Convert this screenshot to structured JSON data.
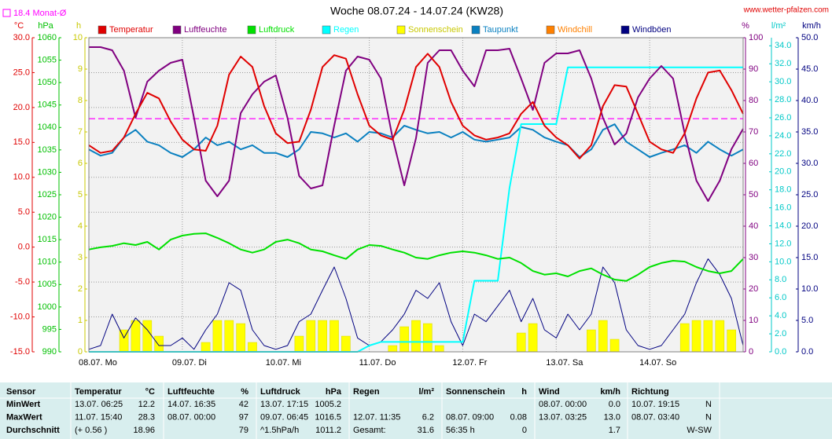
{
  "chart_data": {
    "type": "line",
    "title": "Woche 08.07.24 - 14.07.24 (KW28)",
    "source": "www.wetter-pfalzen.com",
    "monthly_mean": 18.4,
    "monthly_mean_label": "Monat-Ø",
    "monthly_mean_color": "#ff00ff",
    "grid": true,
    "categories": [
      "08.07. Mo",
      null,
      null,
      null,
      null,
      null,
      null,
      null,
      "09.07. Di",
      null,
      null,
      null,
      null,
      null,
      null,
      null,
      "10.07. Mi",
      null,
      null,
      null,
      null,
      null,
      null,
      null,
      "11.07. Do",
      null,
      null,
      null,
      null,
      null,
      null,
      null,
      "12.07. Fr",
      null,
      null,
      null,
      null,
      null,
      null,
      null,
      "13.07. Sa",
      null,
      null,
      null,
      null,
      null,
      null,
      null,
      "14.07. So",
      null,
      null,
      null,
      null,
      null,
      null,
      null,
      null
    ],
    "axes": {
      "temp": {
        "label": "°C",
        "color": "#e00000",
        "lim": [
          -15,
          30
        ],
        "ticks": [
          {
            "value": 30,
            "label": "30.0"
          },
          {
            "value": 25,
            "label": "25.0"
          },
          {
            "value": 20,
            "label": "20.0"
          },
          {
            "value": 15,
            "label": "15.0"
          },
          {
            "value": 10,
            "label": "10.0"
          },
          {
            "value": 5,
            "label": "5.0"
          },
          {
            "value": 0,
            "label": "0.0"
          },
          {
            "value": -5,
            "label": "-5.0"
          },
          {
            "value": -10,
            "label": "-10.0"
          },
          {
            "value": -15,
            "label": "-15.0"
          }
        ]
      },
      "pressure": {
        "label": "hPa",
        "color": "#00c000",
        "lim": [
          990,
          1060
        ],
        "ticks": [
          1060,
          1055,
          1050,
          1045,
          1040,
          1035,
          1030,
          1025,
          1020,
          1015,
          1010,
          1005,
          1000,
          995,
          990
        ]
      },
      "sun": {
        "label": "h",
        "color": "#c8c800",
        "lim": [
          0,
          10
        ],
        "ticks": [
          10,
          9,
          8,
          7,
          6,
          5,
          4,
          3,
          2,
          1,
          0
        ]
      },
      "humidity": {
        "label": "%",
        "color": "#800080",
        "lim": [
          0,
          100
        ],
        "ticks": [
          100,
          90,
          80,
          70,
          60,
          50,
          40,
          30,
          20,
          10,
          0
        ]
      },
      "rain": {
        "label": "l/m²",
        "color": "#00c8c8",
        "lim": [
          0,
          34.9
        ],
        "ticks": [
          {
            "value": 34,
            "label": "34.0"
          },
          {
            "value": 32,
            "label": "32.0"
          },
          {
            "value": 30,
            "label": "30.0"
          },
          {
            "value": 28,
            "label": "28.0"
          },
          {
            "value": 26,
            "label": "26.0"
          },
          {
            "value": 24,
            "label": "24.0"
          },
          {
            "value": 22,
            "label": "22.0"
          },
          {
            "value": 20,
            "label": "20.0"
          },
          {
            "value": 18,
            "label": "18.0"
          },
          {
            "value": 16,
            "label": "16.0"
          },
          {
            "value": 14,
            "label": "14.0"
          },
          {
            "value": 12,
            "label": "12.0"
          },
          {
            "value": 10,
            "label": "10.0"
          },
          {
            "value": 8,
            "label": "8.0"
          },
          {
            "value": 6,
            "label": "6.0"
          },
          {
            "value": 4,
            "label": "4.0"
          },
          {
            "value": 2,
            "label": "2.0"
          },
          {
            "value": 0,
            "label": "0.0"
          }
        ]
      },
      "wind": {
        "label": "km/h",
        "color": "#000080",
        "lim": [
          0,
          50
        ],
        "ticks": [
          {
            "value": 50,
            "label": "50.0"
          },
          {
            "value": 45,
            "label": "45.0"
          },
          {
            "value": 40,
            "label": "40.0"
          },
          {
            "value": 35,
            "label": "35.0"
          },
          {
            "value": 30,
            "label": "30.0"
          },
          {
            "value": 25,
            "label": "25.0"
          },
          {
            "value": 20,
            "label": "20.0"
          },
          {
            "value": 15,
            "label": "15.0"
          },
          {
            "value": 10,
            "label": "10.0"
          },
          {
            "value": 5,
            "label": "5.0"
          },
          {
            "value": 0,
            "label": "0.0"
          }
        ]
      }
    },
    "series": [
      {
        "name": "Temperatur",
        "color": "#e00000",
        "axis": "temp",
        "type": "line",
        "values": [
          14.6,
          13.5,
          13.8,
          15.7,
          19.1,
          22.1,
          21.3,
          18.0,
          15.4,
          14.0,
          13.8,
          17.4,
          24.7,
          27.3,
          25.8,
          20.2,
          16.3,
          14.9,
          15.1,
          19.7,
          25.8,
          27.5,
          27.0,
          21.9,
          17.4,
          16.0,
          15.4,
          19.7,
          25.8,
          27.7,
          25.8,
          20.8,
          17.4,
          16.0,
          15.4,
          15.7,
          16.3,
          19.1,
          20.8,
          17.4,
          15.7,
          14.6,
          12.7,
          14.6,
          20.2,
          23.2,
          23.0,
          19.1,
          15.1,
          14.0,
          13.5,
          16.3,
          21.3,
          25.0,
          25.3,
          22.5,
          19.1
        ]
      },
      {
        "name": "Luftfeuchte",
        "color": "#800080",
        "axis": "humidity",
        "type": "line",
        "values": [
          97,
          97,
          96,
          89.5,
          74.5,
          86,
          89.5,
          92,
          93,
          74.5,
          54.5,
          49.5,
          54.5,
          76,
          82,
          86,
          88,
          74.5,
          56,
          52,
          53,
          72,
          89.5,
          94,
          93,
          87,
          68,
          53,
          68,
          92,
          96,
          96,
          89.5,
          84.5,
          96,
          96,
          96.5,
          87,
          77,
          92,
          95,
          95,
          96,
          87,
          74.5,
          66,
          69.5,
          81,
          87,
          91,
          87,
          69.5,
          54.5,
          48,
          54.5,
          64.5,
          71
        ]
      },
      {
        "name": "Luftdruck",
        "color": "#00e000",
        "axis": "pressure",
        "type": "line",
        "values": [
          1012.8,
          1013.3,
          1013.6,
          1014.2,
          1013.8,
          1014.5,
          1012.8,
          1015.0,
          1015.9,
          1016.3,
          1016.4,
          1015.4,
          1014.2,
          1012.8,
          1012.1,
          1012.8,
          1014.5,
          1015.0,
          1014.2,
          1012.8,
          1012.4,
          1011.5,
          1010.7,
          1012.8,
          1013.8,
          1013.6,
          1012.8,
          1012.1,
          1011.0,
          1010.7,
          1011.5,
          1012.1,
          1012.4,
          1012.1,
          1011.5,
          1010.7,
          1011.0,
          1009.8,
          1008.0,
          1007.2,
          1007.5,
          1006.8,
          1008.0,
          1008.6,
          1007.2,
          1006.1,
          1005.8,
          1007.2,
          1008.9,
          1009.8,
          1010.3,
          1010.1,
          1008.9,
          1008.0,
          1007.5,
          1008.0,
          1010.7
        ]
      },
      {
        "name": "Regen",
        "color": "#00ffff",
        "axis": "rain",
        "type": "line",
        "values": [
          0,
          0,
          0,
          0,
          0,
          0,
          0,
          0,
          0,
          0,
          0,
          0,
          0,
          0,
          0,
          0,
          0,
          0,
          0,
          0,
          0,
          0,
          0,
          0,
          0.7,
          1.1,
          1.1,
          1.1,
          1.1,
          1.1,
          1.1,
          1.1,
          1.1,
          7.9,
          7.9,
          7.9,
          18.2,
          25.3,
          25.3,
          25.3,
          25.3,
          31.6,
          31.6,
          31.6,
          31.6,
          31.6,
          31.6,
          31.6,
          31.6,
          31.6,
          31.6,
          31.6,
          31.6,
          31.6,
          31.6,
          31.6,
          31.6
        ]
      },
      {
        "name": "Sonnenschein",
        "color": "#ffff00",
        "axis": "sun",
        "type": "bar",
        "values": [
          0,
          0,
          0,
          0.7,
          1,
          1,
          0.5,
          0,
          0,
          0,
          0.3,
          1,
          1,
          0.9,
          0.3,
          0,
          0,
          0,
          0.5,
          1,
          1,
          1,
          0.5,
          0,
          0,
          0,
          0.2,
          0.8,
          1,
          0.9,
          0.2,
          0,
          0,
          0,
          0,
          0,
          0,
          0.6,
          0.9,
          0,
          0,
          0,
          0,
          0.7,
          1,
          0.4,
          0,
          0,
          0,
          0,
          0,
          0.9,
          1,
          1,
          1,
          0.7,
          0
        ]
      },
      {
        "name": "Taupunkt",
        "color": "#0a80c0",
        "axis": "temp",
        "type": "line",
        "values": [
          14.0,
          13.1,
          13.5,
          15.7,
          16.8,
          15.1,
          14.6,
          13.5,
          12.9,
          14.0,
          15.7,
          14.6,
          15.1,
          14.0,
          14.6,
          13.5,
          13.5,
          12.9,
          14.0,
          16.5,
          16.3,
          15.7,
          16.3,
          15.1,
          16.5,
          16.3,
          15.7,
          17.4,
          16.8,
          16.3,
          16.5,
          15.7,
          16.5,
          15.4,
          15.1,
          15.4,
          15.7,
          17.2,
          16.8,
          15.7,
          15.1,
          14.6,
          12.9,
          14.0,
          16.8,
          17.6,
          15.1,
          14.0,
          12.9,
          13.5,
          14.0,
          14.6,
          13.5,
          15.1,
          14.0,
          13.1,
          14.0
        ]
      },
      {
        "name": "Windchill",
        "color": "#ff8000",
        "axis": "temp",
        "type": "line"
      },
      {
        "name": "Windböen",
        "color": "#000080",
        "axis": "wind",
        "type": "line",
        "values": [
          0.4,
          1,
          6,
          2.2,
          5.4,
          3.5,
          1,
          1,
          2.2,
          0.4,
          3.5,
          6,
          11,
          9.8,
          3.5,
          1,
          0.4,
          1,
          4.8,
          6,
          9.8,
          13.5,
          8.5,
          2.2,
          1,
          1.6,
          3.5,
          6,
          9.8,
          8.5,
          11,
          4.8,
          1,
          6,
          4.8,
          7.3,
          9.8,
          4.8,
          8.5,
          3.5,
          2.2,
          6,
          3.5,
          6,
          13.5,
          11,
          3.5,
          1,
          0.4,
          1,
          3.5,
          6,
          11,
          14.8,
          12.3,
          8.5,
          1
        ]
      }
    ]
  },
  "table": {
    "header": [
      {
        "name": "Sensor"
      },
      {
        "name": "Temperatur",
        "unit": "°C"
      },
      {
        "name": "Luftfeuchte",
        "unit": "%"
      },
      {
        "name": "Luftdruck",
        "unit": "hPa"
      },
      {
        "name": "Regen",
        "unit": "l/m²"
      },
      {
        "name": "Sonnenschein",
        "unit": "h"
      },
      {
        "name": "Wind",
        "unit": "km/h"
      },
      {
        "name": "Richtung"
      }
    ],
    "rows": [
      {
        "label": "MinWert",
        "cells": [
          {
            "time": "13.07.  06:25",
            "value": "12.2"
          },
          {
            "time": "14.07.  16:35",
            "value": "42"
          },
          {
            "time": "13.07.  17:15",
            "value": "1005.2"
          },
          {},
          {},
          {
            "time": "08.07.  00:00",
            "value": "0.0"
          },
          {
            "time": "10.07.  19:15",
            "value": "N"
          }
        ]
      },
      {
        "label": "MaxWert",
        "cells": [
          {
            "time": "11.07.  15:40",
            "value": "28.3"
          },
          {
            "time": "08.07.  00:00",
            "value": "97"
          },
          {
            "time": "09.07.  06:45",
            "value": "1016.5"
          },
          {
            "time": "12.07.  11:35",
            "value": "6.2"
          },
          {
            "time": "08.07.  09:00",
            "value": "0.08"
          },
          {
            "time": "13.07.  03:25",
            "value": "13.0"
          },
          {
            "time": "08.07.  03:40",
            "value": "N"
          }
        ]
      },
      {
        "label": "Durchschnitt",
        "cells": [
          {
            "time": "(+ 0.56 )",
            "value": "18.96"
          },
          {
            "value": "79"
          },
          {
            "time": "^1.5hPa/h",
            "value": "1011.2"
          },
          {
            "time": "Gesamt:",
            "value": "31.6"
          },
          {
            "time": "56:35 h",
            "value": "0"
          },
          {
            "value": "1.7"
          },
          {
            "value": "W-SW"
          }
        ]
      }
    ]
  }
}
